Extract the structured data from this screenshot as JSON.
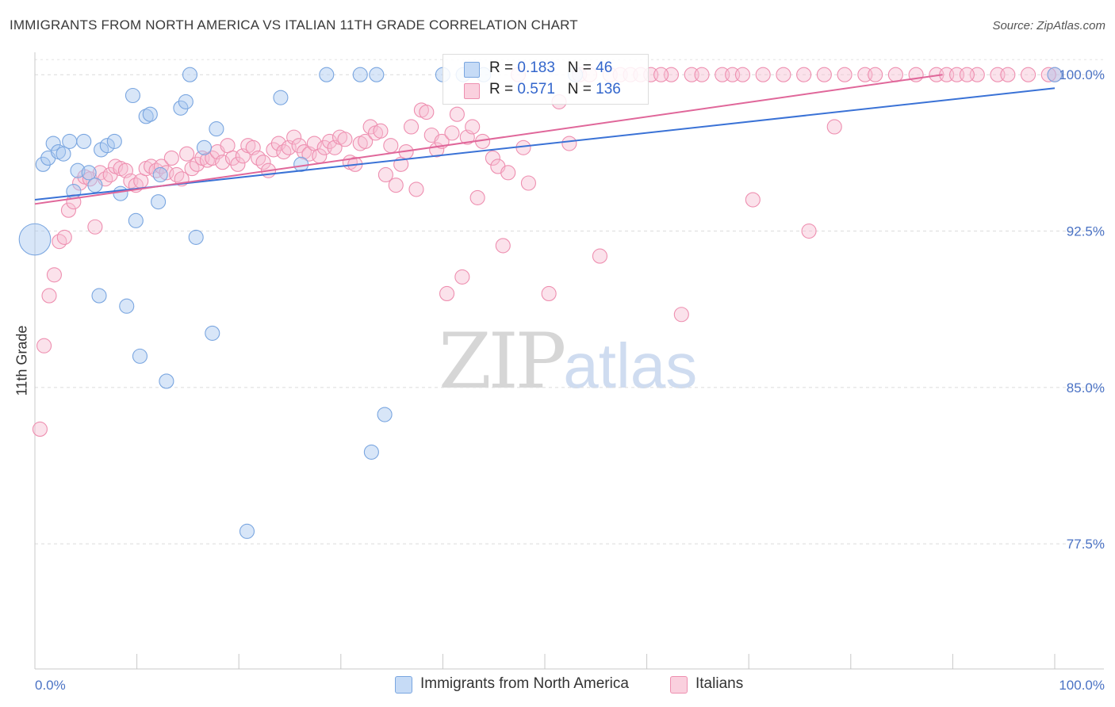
{
  "title": "IMMIGRANTS FROM NORTH AMERICA VS ITALIAN 11TH GRADE CORRELATION CHART",
  "source": "Source: ZipAtlas.com",
  "watermark": {
    "zip": "ZIP",
    "atlas": "atlas"
  },
  "legend": {
    "r_label": "R =",
    "n_label": "N =",
    "series": [
      {
        "name": "Immigrants from North America",
        "r": "0.183",
        "n": "46",
        "color": "#a9c8f0",
        "stroke": "#7aa6e0"
      },
      {
        "name": "Italians",
        "r": "0.571",
        "n": "136",
        "color": "#f7bfd2",
        "stroke": "#ee8fb0"
      }
    ]
  },
  "chart_data": {
    "type": "scatter",
    "title": "IMMIGRANTS FROM NORTH AMERICA VS ITALIAN 11TH GRADE CORRELATION CHART",
    "xlabel": "",
    "ylabel": "11th Grade",
    "xlim": [
      0,
      100
    ],
    "ylim": [
      71.5,
      101.3
    ],
    "x_tick_labels": [
      "0.0%",
      "100.0%"
    ],
    "y_ticks": [
      100.0,
      92.5,
      85.0,
      77.5
    ],
    "y_tick_labels": [
      "100.0%",
      "92.5%",
      "85.0%",
      "77.5%"
    ],
    "grid": true,
    "legend_position": "top-center",
    "series": [
      {
        "name": "Immigrants from North America",
        "color": "#6f9ede",
        "trend": {
          "x": [
            0,
            100
          ],
          "y": [
            94.0,
            99.35
          ]
        },
        "points": [
          {
            "x": 0.0,
            "y": 92.1,
            "s": 2.2
          },
          {
            "x": 0.8,
            "y": 95.7
          },
          {
            "x": 1.3,
            "y": 96.0
          },
          {
            "x": 1.8,
            "y": 96.7
          },
          {
            "x": 2.3,
            "y": 96.3
          },
          {
            "x": 2.8,
            "y": 96.2
          },
          {
            "x": 3.4,
            "y": 96.8
          },
          {
            "x": 3.8,
            "y": 94.4
          },
          {
            "x": 4.2,
            "y": 95.4
          },
          {
            "x": 4.8,
            "y": 96.8
          },
          {
            "x": 5.3,
            "y": 95.3
          },
          {
            "x": 5.9,
            "y": 94.7
          },
          {
            "x": 6.3,
            "y": 89.4
          },
          {
            "x": 6.5,
            "y": 96.4
          },
          {
            "x": 7.1,
            "y": 96.6
          },
          {
            "x": 7.8,
            "y": 96.8
          },
          {
            "x": 8.4,
            "y": 94.3
          },
          {
            "x": 9.0,
            "y": 88.9
          },
          {
            "x": 9.6,
            "y": 99.0
          },
          {
            "x": 9.9,
            "y": 93.0
          },
          {
            "x": 10.3,
            "y": 86.5
          },
          {
            "x": 10.9,
            "y": 98.0
          },
          {
            "x": 11.3,
            "y": 98.1
          },
          {
            "x": 12.1,
            "y": 93.9
          },
          {
            "x": 12.3,
            "y": 95.2
          },
          {
            "x": 12.9,
            "y": 85.3
          },
          {
            "x": 14.3,
            "y": 98.4
          },
          {
            "x": 14.8,
            "y": 98.7
          },
          {
            "x": 15.2,
            "y": 100.0
          },
          {
            "x": 15.8,
            "y": 92.2
          },
          {
            "x": 16.6,
            "y": 96.5
          },
          {
            "x": 17.4,
            "y": 87.6
          },
          {
            "x": 17.8,
            "y": 97.4
          },
          {
            "x": 20.8,
            "y": 78.1
          },
          {
            "x": 24.1,
            "y": 98.9
          },
          {
            "x": 26.1,
            "y": 95.7
          },
          {
            "x": 28.6,
            "y": 100.0
          },
          {
            "x": 31.9,
            "y": 100.0
          },
          {
            "x": 33.5,
            "y": 100.0
          },
          {
            "x": 33.0,
            "y": 81.9
          },
          {
            "x": 34.3,
            "y": 83.7
          },
          {
            "x": 40.0,
            "y": 100.0
          },
          {
            "x": 42.0,
            "y": 100.0
          },
          {
            "x": 44.0,
            "y": 100.0
          },
          {
            "x": 53.0,
            "y": 100.0
          },
          {
            "x": 100.0,
            "y": 100.0
          }
        ]
      },
      {
        "name": "Italians",
        "color": "#ee8fb0",
        "trend": {
          "x": [
            0,
            89
          ],
          "y": [
            93.8,
            100.0
          ]
        },
        "points": [
          {
            "x": 0.5,
            "y": 83.0
          },
          {
            "x": 0.9,
            "y": 87.0
          },
          {
            "x": 1.4,
            "y": 89.4
          },
          {
            "x": 1.9,
            "y": 90.4
          },
          {
            "x": 2.4,
            "y": 92.0
          },
          {
            "x": 2.9,
            "y": 92.2
          },
          {
            "x": 3.3,
            "y": 93.5
          },
          {
            "x": 3.8,
            "y": 93.9
          },
          {
            "x": 4.4,
            "y": 94.8
          },
          {
            "x": 4.9,
            "y": 95.1
          },
          {
            "x": 5.4,
            "y": 95.0
          },
          {
            "x": 5.9,
            "y": 92.7
          },
          {
            "x": 6.4,
            "y": 95.3
          },
          {
            "x": 6.9,
            "y": 95.0
          },
          {
            "x": 7.4,
            "y": 95.2
          },
          {
            "x": 7.9,
            "y": 95.6
          },
          {
            "x": 8.4,
            "y": 95.5
          },
          {
            "x": 8.9,
            "y": 95.4
          },
          {
            "x": 9.4,
            "y": 94.9
          },
          {
            "x": 9.9,
            "y": 94.7
          },
          {
            "x": 10.4,
            "y": 94.9
          },
          {
            "x": 10.9,
            "y": 95.5
          },
          {
            "x": 11.4,
            "y": 95.6
          },
          {
            "x": 11.9,
            "y": 95.4
          },
          {
            "x": 12.4,
            "y": 95.6
          },
          {
            "x": 12.9,
            "y": 95.3
          },
          {
            "x": 13.4,
            "y": 96.0
          },
          {
            "x": 13.9,
            "y": 95.2
          },
          {
            "x": 14.4,
            "y": 95.0
          },
          {
            "x": 14.9,
            "y": 96.2
          },
          {
            "x": 15.4,
            "y": 95.5
          },
          {
            "x": 15.9,
            "y": 95.7
          },
          {
            "x": 16.4,
            "y": 96.0
          },
          {
            "x": 16.9,
            "y": 95.9
          },
          {
            "x": 17.4,
            "y": 96.0
          },
          {
            "x": 17.9,
            "y": 96.3
          },
          {
            "x": 18.4,
            "y": 95.8
          },
          {
            "x": 18.9,
            "y": 96.6
          },
          {
            "x": 19.4,
            "y": 96.0
          },
          {
            "x": 19.9,
            "y": 95.7
          },
          {
            "x": 20.4,
            "y": 96.1
          },
          {
            "x": 20.9,
            "y": 96.6
          },
          {
            "x": 21.4,
            "y": 96.5
          },
          {
            "x": 21.9,
            "y": 96.0
          },
          {
            "x": 22.4,
            "y": 95.8
          },
          {
            "x": 22.9,
            "y": 95.4
          },
          {
            "x": 23.4,
            "y": 96.4
          },
          {
            "x": 23.9,
            "y": 96.7
          },
          {
            "x": 24.4,
            "y": 96.3
          },
          {
            "x": 24.9,
            "y": 96.5
          },
          {
            "x": 25.4,
            "y": 97.0
          },
          {
            "x": 25.9,
            "y": 96.6
          },
          {
            "x": 26.4,
            "y": 96.3
          },
          {
            "x": 26.9,
            "y": 96.2
          },
          {
            "x": 27.4,
            "y": 96.7
          },
          {
            "x": 27.9,
            "y": 96.1
          },
          {
            "x": 28.4,
            "y": 96.5
          },
          {
            "x": 28.9,
            "y": 96.8
          },
          {
            "x": 29.4,
            "y": 96.5
          },
          {
            "x": 29.9,
            "y": 97.0
          },
          {
            "x": 30.4,
            "y": 96.9
          },
          {
            "x": 30.9,
            "y": 95.8
          },
          {
            "x": 31.4,
            "y": 95.7
          },
          {
            "x": 31.9,
            "y": 96.7
          },
          {
            "x": 32.4,
            "y": 96.8
          },
          {
            "x": 32.9,
            "y": 97.5
          },
          {
            "x": 33.4,
            "y": 97.2
          },
          {
            "x": 33.9,
            "y": 97.3
          },
          {
            "x": 34.4,
            "y": 95.2
          },
          {
            "x": 34.9,
            "y": 96.6
          },
          {
            "x": 35.4,
            "y": 94.7
          },
          {
            "x": 35.9,
            "y": 95.7
          },
          {
            "x": 36.4,
            "y": 96.3
          },
          {
            "x": 36.9,
            "y": 97.5
          },
          {
            "x": 37.4,
            "y": 94.5
          },
          {
            "x": 37.9,
            "y": 98.3
          },
          {
            "x": 38.4,
            "y": 98.2
          },
          {
            "x": 38.9,
            "y": 97.1
          },
          {
            "x": 39.4,
            "y": 96.4
          },
          {
            "x": 39.9,
            "y": 96.8
          },
          {
            "x": 40.4,
            "y": 89.5
          },
          {
            "x": 40.9,
            "y": 97.2
          },
          {
            "x": 41.4,
            "y": 98.1
          },
          {
            "x": 41.9,
            "y": 90.3
          },
          {
            "x": 42.4,
            "y": 97.0
          },
          {
            "x": 42.9,
            "y": 97.5
          },
          {
            "x": 43.4,
            "y": 94.1
          },
          {
            "x": 43.9,
            "y": 96.8
          },
          {
            "x": 44.9,
            "y": 96.0
          },
          {
            "x": 45.4,
            "y": 95.6
          },
          {
            "x": 45.9,
            "y": 91.8
          },
          {
            "x": 46.4,
            "y": 95.3
          },
          {
            "x": 47.4,
            "y": 100.0
          },
          {
            "x": 47.9,
            "y": 96.5
          },
          {
            "x": 48.4,
            "y": 94.8
          },
          {
            "x": 50.4,
            "y": 89.5
          },
          {
            "x": 51.4,
            "y": 98.7
          },
          {
            "x": 52.4,
            "y": 96.7
          },
          {
            "x": 53.4,
            "y": 100.0
          },
          {
            "x": 54.4,
            "y": 100.0
          },
          {
            "x": 55.4,
            "y": 91.3
          },
          {
            "x": 56.4,
            "y": 100.0
          },
          {
            "x": 57.4,
            "y": 100.0
          },
          {
            "x": 58.4,
            "y": 100.0
          },
          {
            "x": 59.4,
            "y": 100.0
          },
          {
            "x": 60.4,
            "y": 100.0
          },
          {
            "x": 62.4,
            "y": 100.0
          },
          {
            "x": 63.4,
            "y": 88.5
          },
          {
            "x": 64.4,
            "y": 100.0
          },
          {
            "x": 67.4,
            "y": 100.0
          },
          {
            "x": 68.4,
            "y": 100.0
          },
          {
            "x": 70.4,
            "y": 94.0
          },
          {
            "x": 71.4,
            "y": 100.0
          },
          {
            "x": 75.4,
            "y": 100.0
          },
          {
            "x": 75.9,
            "y": 92.5
          },
          {
            "x": 78.4,
            "y": 97.5
          },
          {
            "x": 79.4,
            "y": 100.0
          },
          {
            "x": 81.4,
            "y": 100.0
          },
          {
            "x": 82.4,
            "y": 100.0
          },
          {
            "x": 84.4,
            "y": 100.0
          },
          {
            "x": 88.4,
            "y": 100.0
          },
          {
            "x": 89.4,
            "y": 100.0
          },
          {
            "x": 90.4,
            "y": 100.0
          },
          {
            "x": 92.4,
            "y": 100.0
          },
          {
            "x": 94.4,
            "y": 100.0
          },
          {
            "x": 97.4,
            "y": 100.0
          },
          {
            "x": 100.0,
            "y": 100.0
          },
          {
            "x": 99.4,
            "y": 100.0
          },
          {
            "x": 61.4,
            "y": 100.0
          },
          {
            "x": 65.4,
            "y": 100.0
          },
          {
            "x": 69.4,
            "y": 100.0
          },
          {
            "x": 73.4,
            "y": 100.0
          },
          {
            "x": 77.4,
            "y": 100.0
          },
          {
            "x": 86.4,
            "y": 100.0
          },
          {
            "x": 91.4,
            "y": 100.0
          },
          {
            "x": 95.4,
            "y": 100.0
          }
        ]
      }
    ]
  }
}
